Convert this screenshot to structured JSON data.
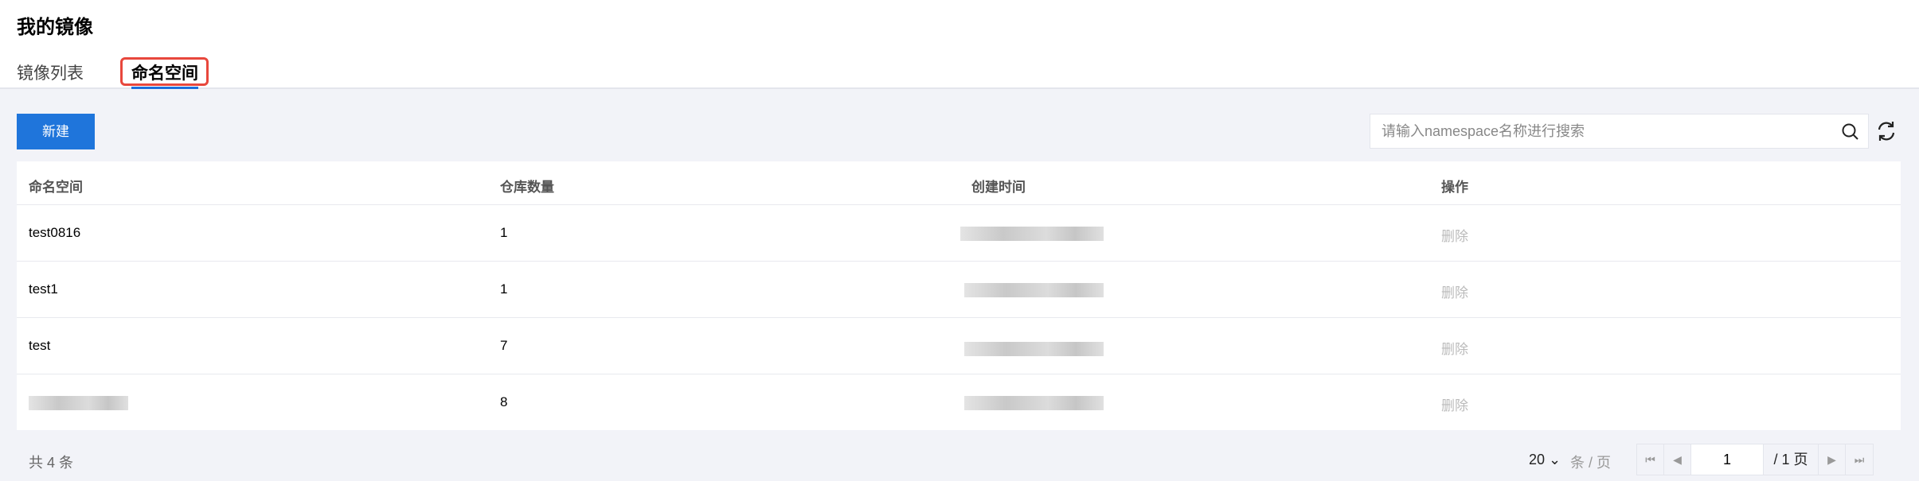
{
  "header": {
    "title": "我的镜像",
    "tabs": [
      {
        "label": "镜像列表",
        "active": false
      },
      {
        "label": "命名空间",
        "active": true
      }
    ]
  },
  "toolbar": {
    "new_label": "新建",
    "search_placeholder": "请输入namespace名称进行搜索"
  },
  "table": {
    "columns": [
      "命名空间",
      "仓库数量",
      "创建时间",
      "操作"
    ],
    "rows": [
      {
        "name": "test0816",
        "count": "1",
        "action": "删除"
      },
      {
        "name": "test1",
        "count": "1",
        "action": "删除"
      },
      {
        "name": "test",
        "count": "7",
        "action": "删除"
      },
      {
        "name": "",
        "count": "8",
        "action": "删除"
      }
    ]
  },
  "footer": {
    "total": "共 4 条",
    "page_size": "20",
    "page_size_unit": "条 / 页",
    "current_page": "1",
    "total_pages": "/ 1 页"
  },
  "colors": {
    "accent": "#1f75db",
    "highlight": "#e8473c"
  }
}
